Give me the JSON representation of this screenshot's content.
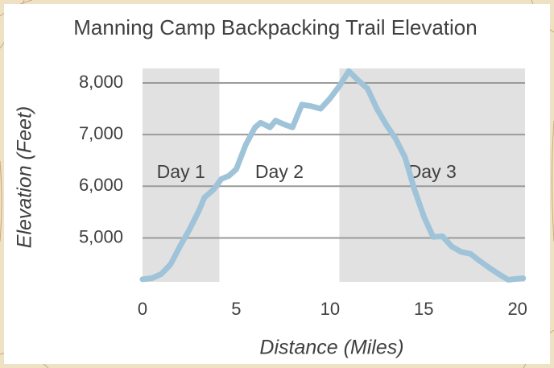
{
  "chart_data": {
    "type": "line",
    "title": "Manning Camp Backpacking Trail Elevation",
    "x_label": "Distance (Miles)",
    "y_label": "Elevation (Feet)",
    "x": [
      0,
      0.5,
      1,
      1.5,
      2,
      2.5,
      3,
      3.3,
      3.8,
      4.2,
      4.6,
      5,
      5.5,
      6,
      6.3,
      6.8,
      7.1,
      7.6,
      8,
      8.5,
      9,
      9.5,
      10,
      10.5,
      11,
      11.5,
      12,
      12.5,
      13,
      13.5,
      14,
      14.5,
      15,
      15.5,
      16,
      16.5,
      17,
      17.5,
      18,
      18.5,
      19,
      19.5,
      20.3
    ],
    "series": [
      {
        "color": "#9fc3d8",
        "values": [
          4200,
          4220,
          4300,
          4490,
          4840,
          5160,
          5520,
          5780,
          5940,
          6140,
          6200,
          6330,
          6800,
          7140,
          7230,
          7140,
          7270,
          7190,
          7140,
          7580,
          7550,
          7500,
          7700,
          7940,
          8230,
          8050,
          7890,
          7500,
          7190,
          6920,
          6560,
          5940,
          5420,
          5020,
          5030,
          4830,
          4730,
          4690,
          4550,
          4420,
          4300,
          4190,
          4220
        ]
      }
    ],
    "spans": [
      {
        "label": "Day 1",
        "start": 0,
        "end": 4.1,
        "shaded": true
      },
      {
        "label": "Day 2",
        "start": 4.1,
        "end": 10.5,
        "shaded": false
      },
      {
        "label": "Day 3",
        "start": 10.5,
        "end": 20.4,
        "shaded": true
      }
    ],
    "span_color": "#e1e1e1",
    "xlim": [
      0,
      20.4
    ],
    "ylim": [
      4150,
      8280
    ],
    "xticks": [
      0,
      5,
      10,
      15,
      20
    ],
    "yticks": [
      {
        "value": 5000,
        "label": "5,000"
      },
      {
        "value": 6000,
        "label": "6,000"
      },
      {
        "value": 7000,
        "label": "7,000"
      },
      {
        "value": 8000,
        "label": "8,000"
      }
    ],
    "grid": true
  }
}
